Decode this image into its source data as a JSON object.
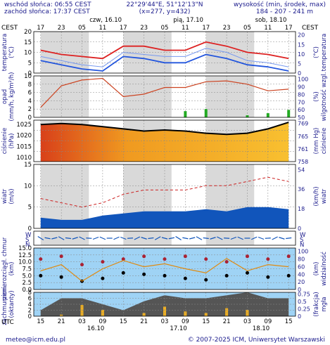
{
  "header": {
    "sunrise": "wschód słońca: 06:55 CEST",
    "sunset": "zachód słońca: 17:37 CEST",
    "coords": "22°29'44\"E, 51°12'13\"N",
    "grid": "(x=277, y=432)",
    "altitude_label": "wysokość (min, środek, max)",
    "altitude_values": "184 - 207 - 241 m"
  },
  "top_axis": {
    "tz_left": "CEST",
    "tz_right": "CEST",
    "hours": [
      "17",
      "23",
      "05",
      "11",
      "17",
      "23",
      "05",
      "11",
      "17",
      "23",
      "05",
      "11",
      "17"
    ],
    "days": [
      "czw, 16.10",
      "pią, 17.10",
      "sob, 18.10"
    ]
  },
  "bottom_axis": {
    "tz": "UTC",
    "hours": [
      "15",
      "21",
      "03",
      "09",
      "15",
      "21",
      "03",
      "09",
      "15",
      "21",
      "03",
      "09",
      "15"
    ],
    "days": [
      "16.10",
      "17.10",
      "18.10"
    ]
  },
  "footer": {
    "email": "meteo@icm.edu.pl",
    "copyright": "© 2007-2025 ICM, Uniwersytet Warszawski"
  },
  "colors": {
    "background": "#ffffff",
    "panel_sky": "#9fd3f5",
    "night_band": "#d9d9d9",
    "temp_max": "#dd2222",
    "temp_mean": "#2255dd",
    "humidity_line": "#cc4422",
    "precip_bar": "#22aa22",
    "pressure_line": "#000000",
    "wind_gust": "#cc2222",
    "wind_fill": "#1155bb",
    "cloud_dark": "#555555",
    "fog_bar": "#f0b020"
  },
  "chart_data": [
    {
      "type": "line",
      "panel": "temperature",
      "ylabel_left": "temperatura",
      "unit_left": "(°C)",
      "unit_right": "(°C)",
      "ylabel_right": "temperatura",
      "ylim": [
        0,
        20
      ],
      "yticks": [
        0,
        5,
        10,
        15,
        20
      ],
      "x_hours_from_start": [
        0,
        6,
        12,
        18,
        24,
        30,
        36,
        42,
        48,
        54,
        60,
        66,
        72
      ],
      "series": [
        {
          "values": [
            11,
            9,
            8,
            7,
            13,
            13,
            11,
            11,
            15,
            13,
            10,
            9,
            7
          ]
        },
        {
          "values": [
            8,
            6,
            4,
            3,
            10,
            9,
            8,
            8,
            12,
            10,
            6,
            5,
            3
          ]
        },
        {
          "values": [
            6,
            4,
            2,
            1,
            8,
            7,
            5,
            5,
            9,
            7,
            4,
            3,
            1
          ]
        }
      ]
    },
    {
      "type": "line",
      "panel": "precipitation_humidity",
      "ylabel_left": "opad",
      "unit_left": "(mm/h, kg/m²/h)",
      "ylabel_right": "wilgotność wzgl.",
      "unit_right": "(%)",
      "ylim": [
        0,
        10
      ],
      "yticks": [
        0,
        2,
        4,
        6,
        8,
        10
      ],
      "yticks_right": [
        50,
        60,
        70,
        80,
        90,
        100
      ],
      "x_hours_from_start": [
        0,
        6,
        12,
        18,
        24,
        30,
        36,
        42,
        48,
        54,
        60,
        66,
        72
      ],
      "humidity": [
        62,
        88,
        95,
        97,
        75,
        78,
        86,
        86,
        93,
        94,
        90,
        82,
        84
      ],
      "precip_rate": [
        0,
        0,
        0,
        0,
        0,
        0,
        0,
        1.5,
        2,
        0,
        0.5,
        1,
        1.8
      ]
    },
    {
      "type": "area",
      "panel": "pressure",
      "ylabel_left": "ciśnienie",
      "unit_left": "(hPa)",
      "ylabel_right": "ciśnienie",
      "unit_right": "(mm Hg)",
      "ylim": [
        1008,
        1027
      ],
      "yticks": [
        1010,
        1015,
        1020,
        1025
      ],
      "yticks_right": [
        758,
        761,
        765,
        769
      ],
      "x_hours_from_start": [
        0,
        6,
        12,
        18,
        24,
        30,
        36,
        42,
        48,
        54,
        60,
        66,
        72
      ],
      "values": [
        1025,
        1025.5,
        1025,
        1024,
        1023,
        1022,
        1022.5,
        1022,
        1021,
        1020.5,
        1021,
        1023,
        1026
      ]
    },
    {
      "type": "area",
      "panel": "wind",
      "ylabel_left": "wiatr",
      "unit_left": "(m/s)",
      "ylabel_right": "wiatr",
      "unit_right": "(km/h)",
      "ylim": [
        0,
        15
      ],
      "yticks": [
        0,
        5,
        10,
        15
      ],
      "yticks_right": [
        0,
        18,
        36,
        54
      ],
      "x_hours_from_start": [
        0,
        6,
        12,
        18,
        24,
        30,
        36,
        42,
        48,
        54,
        60,
        66,
        72
      ],
      "gusts": [
        7,
        6,
        5,
        6,
        8,
        9,
        9,
        9,
        10,
        10,
        11,
        12,
        11
      ],
      "mean_speed": [
        2.5,
        2,
        2,
        3,
        3.5,
        4,
        4,
        4,
        4.5,
        4,
        5,
        5,
        4.5
      ]
    },
    {
      "type": "scatter",
      "panel": "wind_direction",
      "ylabel_left": "W",
      "ylabel_left2": "S",
      "ylabel_left3": "N",
      "ylabel_right": "W",
      "ylabel_right2": "S",
      "ylabel_right3": "N"
    },
    {
      "type": "scatter",
      "panel": "ceiling_visibility",
      "ylabel_left": "pion. rozciągł. chmur",
      "unit_left": "(km)",
      "ylabel_right": "widzialność",
      "unit_right": "(km)",
      "ylim": [
        0,
        15
      ],
      "yticks": [
        0,
        2.5,
        5,
        7.5,
        10,
        12.5,
        15
      ],
      "ytick_labels": [
        "0.0",
        "2.5",
        "5.0",
        "7.5",
        "10.0",
        "12.5",
        "15.0"
      ],
      "yticks_right": [
        0,
        20,
        40,
        60,
        80,
        100
      ],
      "x_hours_from_start": [
        0,
        6,
        12,
        18,
        24,
        30,
        36,
        42,
        48,
        54,
        60,
        66,
        72
      ],
      "visibility": [
        45,
        60,
        20,
        50,
        70,
        55,
        62,
        50,
        40,
        75,
        45,
        60,
        55
      ],
      "cloud_base_low": [
        5,
        4.5,
        3,
        4,
        6,
        5.5,
        5,
        4,
        3.5,
        5,
        6,
        4.5,
        5
      ],
      "cloud_top_high": [
        11,
        12,
        9,
        10,
        11,
        12,
        11,
        12,
        11,
        10,
        12,
        11,
        12
      ]
    },
    {
      "type": "area",
      "panel": "cloud_fog",
      "ylabel_left": "zachmurzenie",
      "unit_left": "(oktanty)",
      "ylabel_right": "mgła",
      "unit_right": "(frakcja)",
      "ylim": [
        0,
        8
      ],
      "yticks": [
        0,
        2,
        4,
        6,
        8
      ],
      "yticks_right": [
        0,
        0.25,
        0.5,
        0.75
      ],
      "x_hours_from_start": [
        0,
        6,
        12,
        18,
        24,
        30,
        36,
        42,
        48,
        54,
        60,
        66,
        72
      ],
      "low_clouds": [
        2,
        6,
        6,
        4,
        2,
        5,
        7,
        6,
        6,
        7,
        8,
        6,
        6
      ],
      "fog_fraction": [
        0,
        0.05,
        0.35,
        0.2,
        0,
        0.1,
        0.3,
        0.15,
        0.1,
        0.25,
        0.2,
        0,
        0
      ]
    }
  ]
}
